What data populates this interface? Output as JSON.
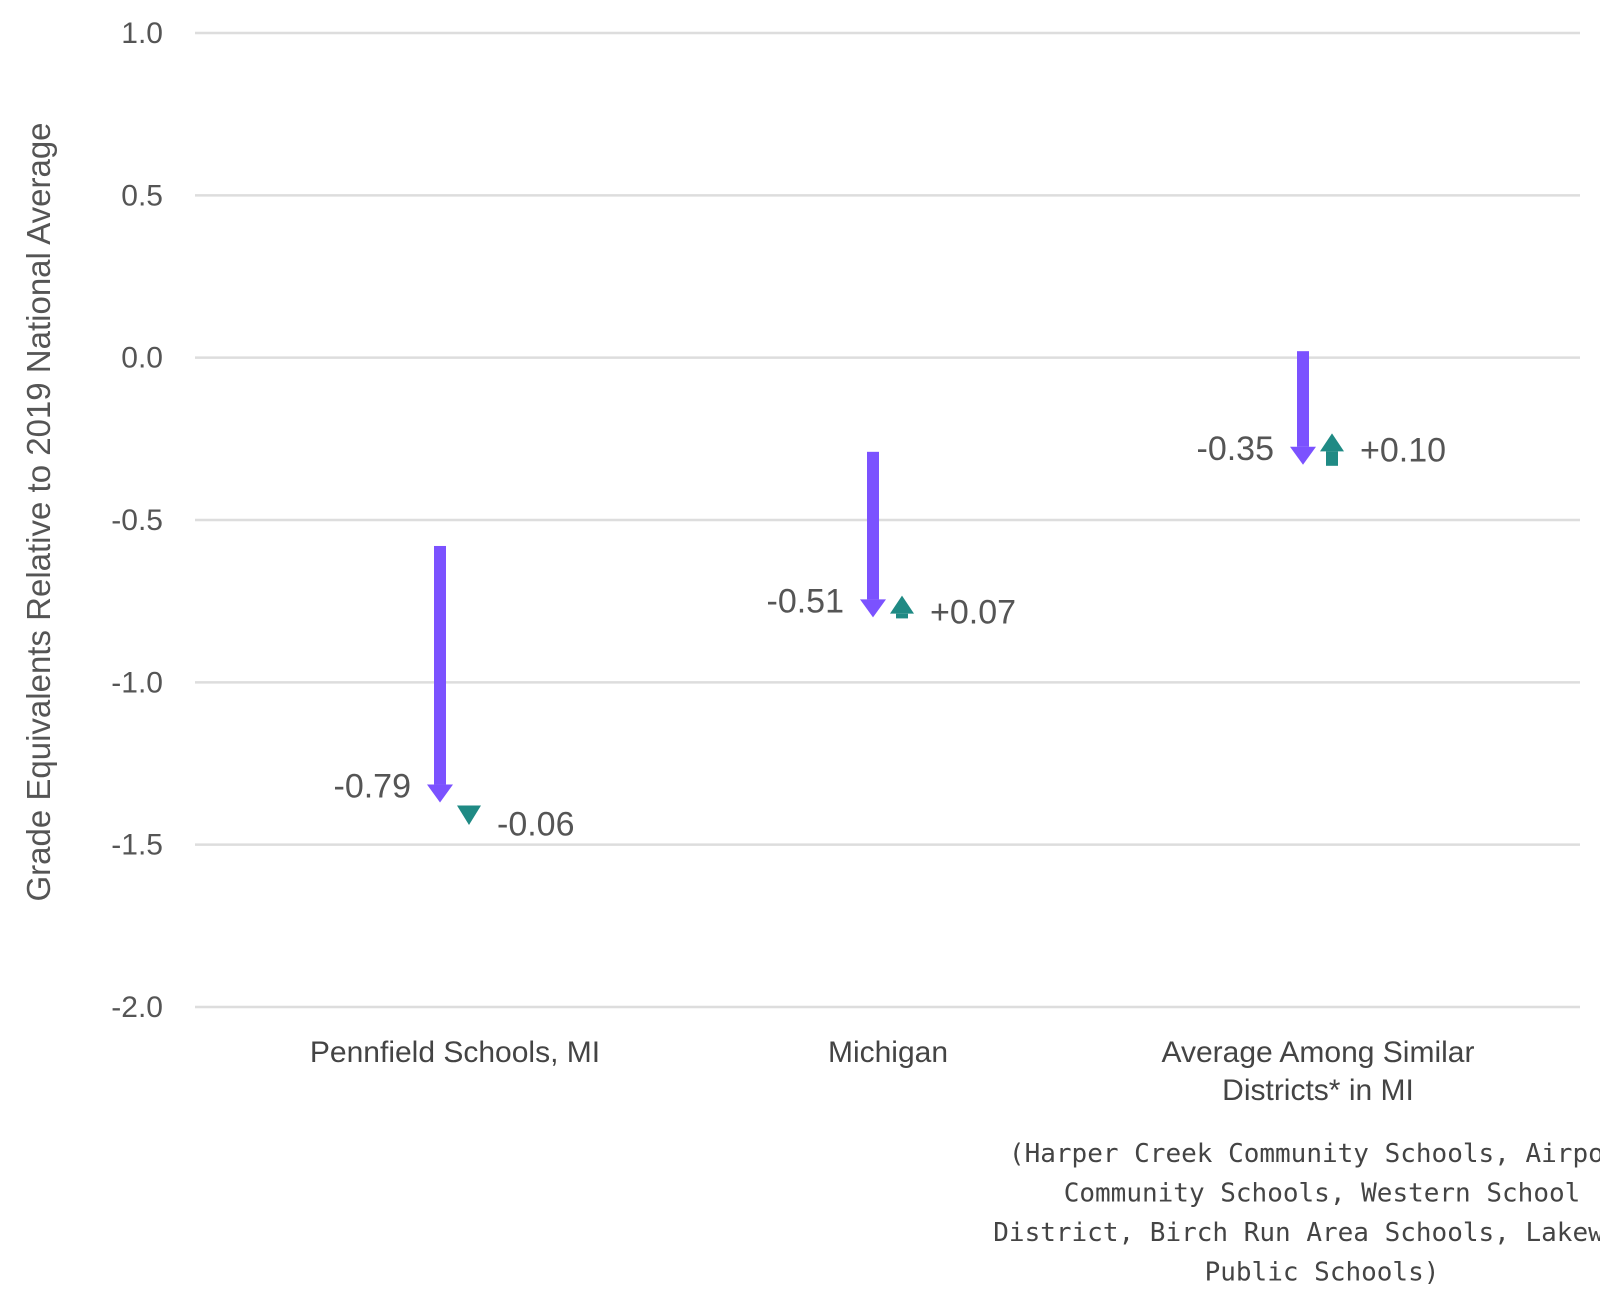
{
  "chart_data": {
    "type": "arrow",
    "ylabel": "Grade Equivalents Relative to 2019 National Average",
    "ylim": [
      -2.0,
      1.0
    ],
    "yticks": [
      "1.0",
      "0.5",
      "0.0",
      "-0.5",
      "-1.0",
      "-1.5",
      "-2.0"
    ],
    "ytick_values": [
      1.0,
      0.5,
      0.0,
      -0.5,
      -1.0,
      -1.5,
      -2.0
    ],
    "grid": true,
    "colors": {
      "drop_arrow": "#7b52ff",
      "change_marker": "#1f8a84",
      "gridline": "#dddddd",
      "text": "#555555"
    },
    "categories": [
      {
        "name_lines": [
          "Pennfield Schools, MI"
        ],
        "start": -0.58,
        "drop": -0.79,
        "drop_label": "-0.79",
        "change": -0.06,
        "change_label": "-0.06"
      },
      {
        "name_lines": [
          "Michigan"
        ],
        "start": -0.29,
        "drop": -0.51,
        "drop_label": "-0.51",
        "change": 0.07,
        "change_label": "+0.07"
      },
      {
        "name_lines": [
          "Average Among Similar",
          "Districts* in MI"
        ],
        "start": 0.02,
        "drop": -0.35,
        "drop_label": "-0.35",
        "change": 0.1,
        "change_label": "+0.10"
      }
    ],
    "footnote_lines": [
      "(Harper Creek Community Schools, Airport",
      "Community Schools, Western School",
      "District, Birch Run Area Schools, Lakewood",
      "Public Schools)"
    ]
  }
}
